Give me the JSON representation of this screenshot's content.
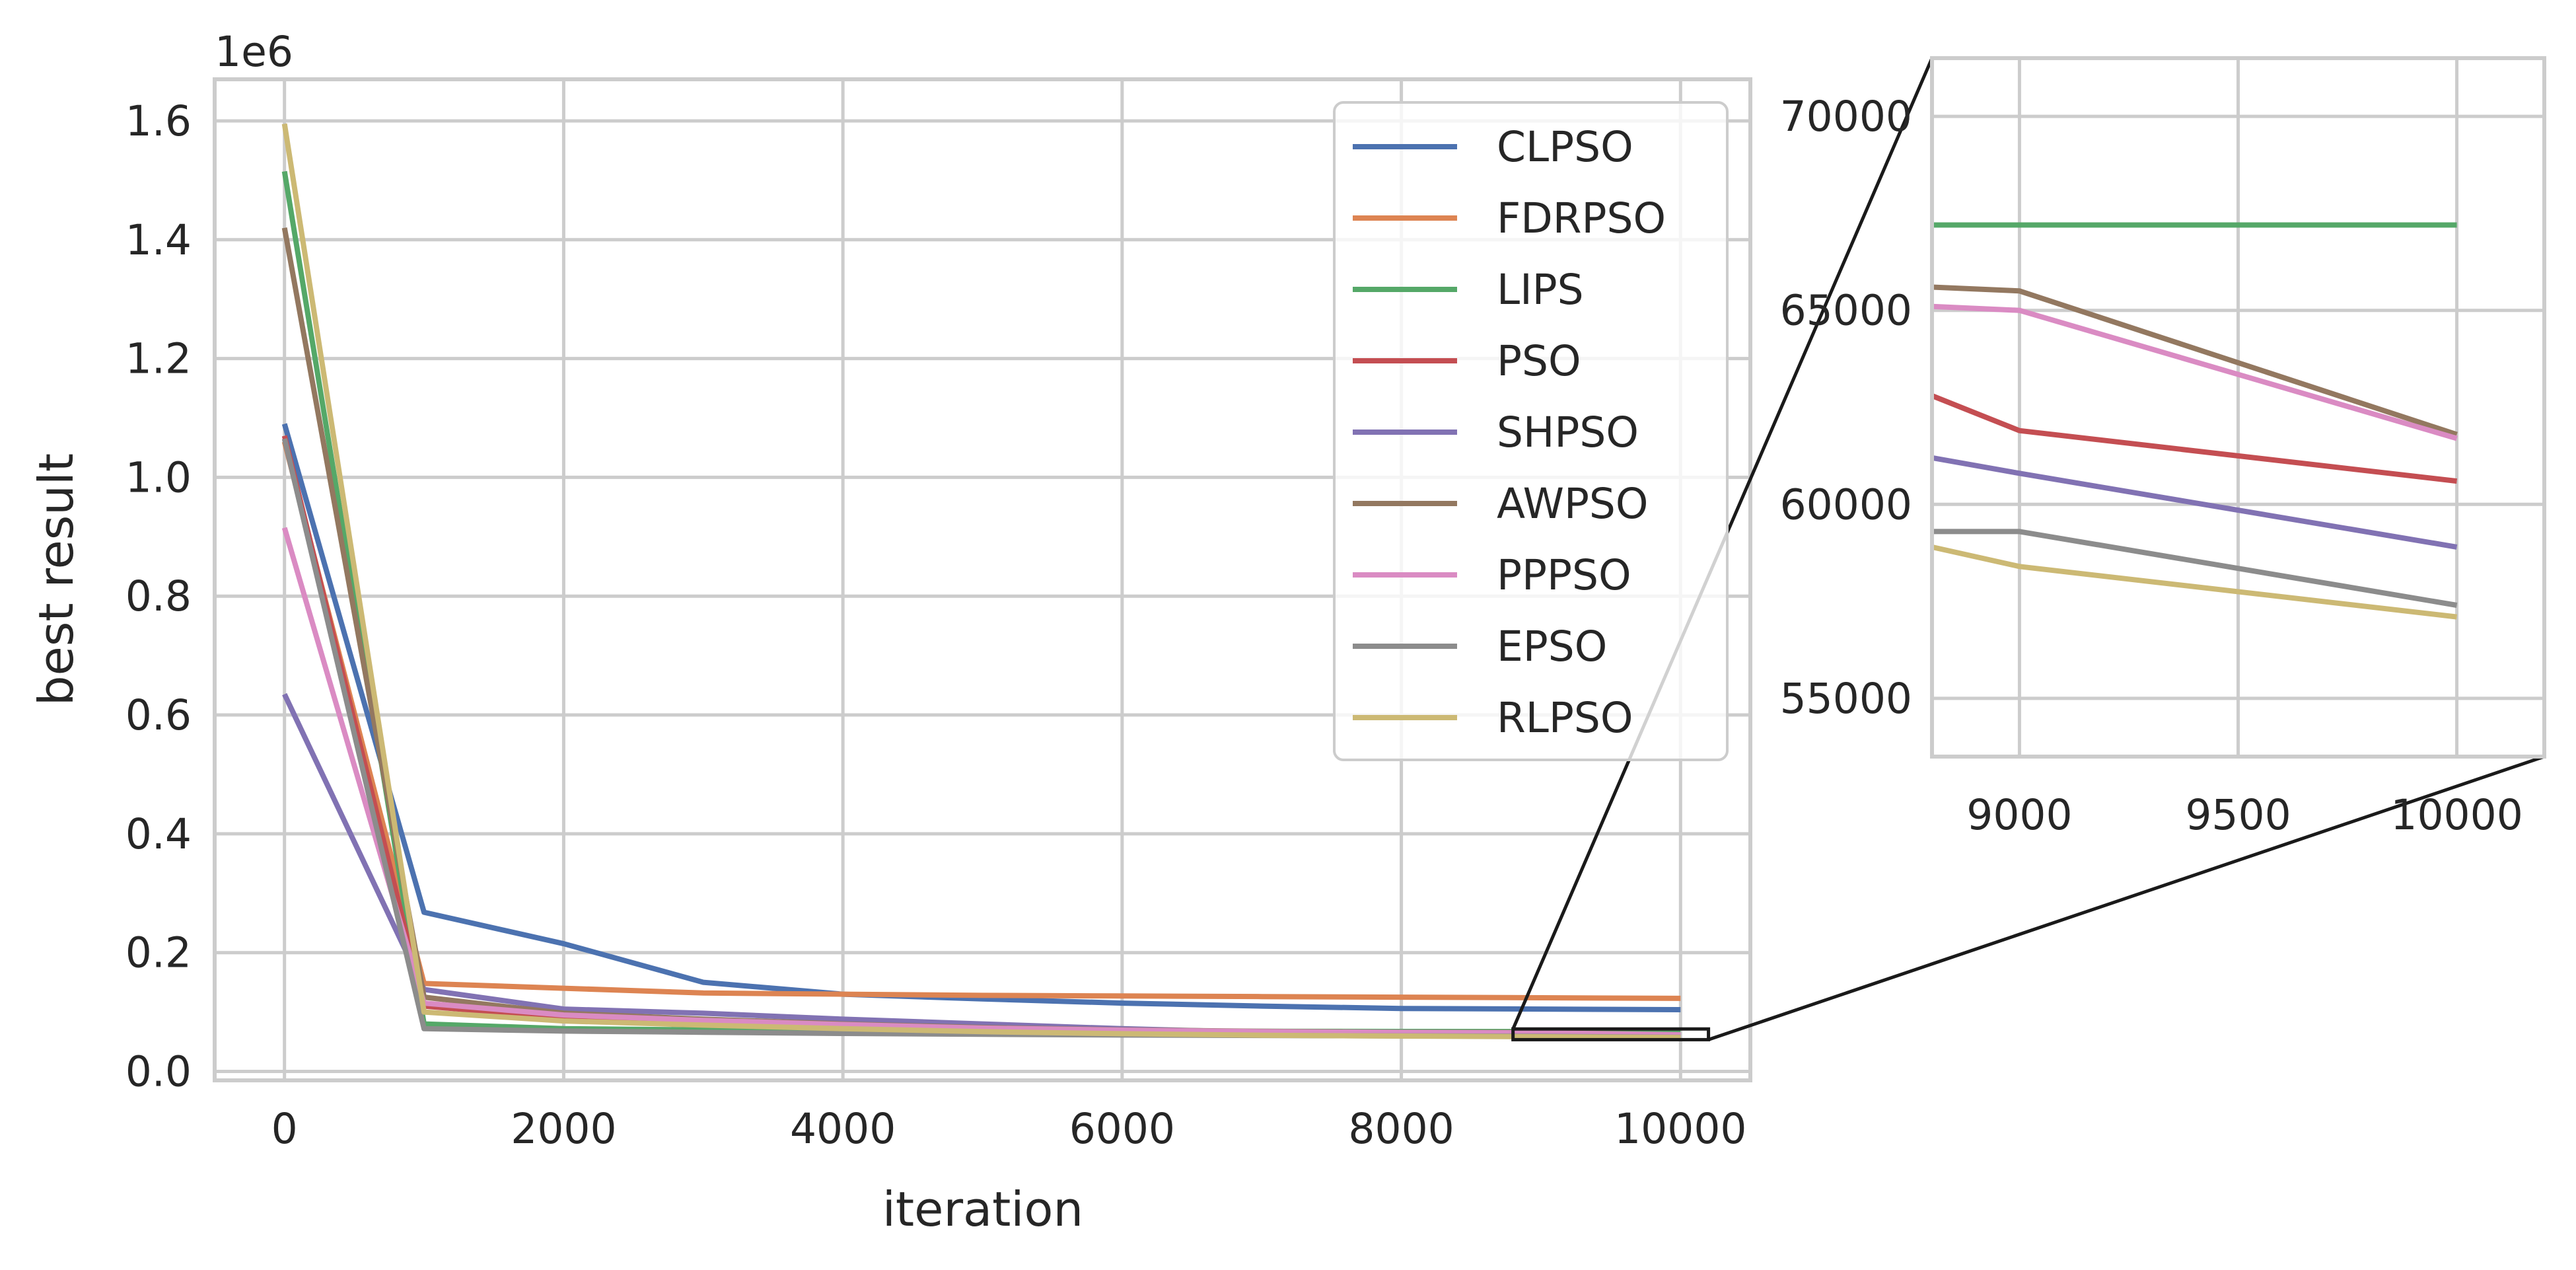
{
  "chart_data": [
    {
      "type": "line",
      "title": "",
      "xlabel": "iteration",
      "ylabel": "best result",
      "y_multiplier_label": "1e6",
      "xlim": [
        -500,
        10500
      ],
      "ylim": [
        -15000,
        1670000
      ],
      "xticks": [
        0,
        2000,
        4000,
        6000,
        8000,
        10000
      ],
      "xtick_labels": [
        "0",
        "2000",
        "4000",
        "6000",
        "8000",
        "10000"
      ],
      "yticks": [
        0,
        200000,
        400000,
        600000,
        800000,
        1000000,
        1200000,
        1400000,
        1600000
      ],
      "ytick_labels": [
        "0.0",
        "0.2",
        "0.4",
        "0.6",
        "0.8",
        "1.0",
        "1.2",
        "1.4",
        "1.6"
      ],
      "grid": true,
      "legend_position": "upper-right",
      "x": [
        0,
        1000,
        2000,
        3000,
        4000,
        5000,
        6000,
        7000,
        8000,
        9000,
        10000
      ],
      "series": [
        {
          "name": "CLPSO",
          "color": "#4c72b0",
          "values": [
            1090000,
            268000,
            215000,
            150000,
            130000,
            122000,
            115000,
            110000,
            106000,
            105000,
            104000
          ]
        },
        {
          "name": "FDRPSO",
          "color": "#dd8452",
          "values": [
            1060000,
            148000,
            140000,
            132000,
            130000,
            128000,
            127000,
            126000,
            125000,
            124000,
            123000
          ]
        },
        {
          "name": "LIPS",
          "color": "#55a868",
          "values": [
            1515000,
            80000,
            72000,
            70000,
            69000,
            68000,
            67800,
            67500,
            67300,
            67200,
            67200
          ]
        },
        {
          "name": "PSO",
          "color": "#c44e52",
          "values": [
            1070000,
            110000,
            90000,
            80000,
            72000,
            68000,
            65000,
            63500,
            62500,
            61900,
            60600
          ]
        },
        {
          "name": "SHPSO",
          "color": "#8172b3",
          "values": [
            635000,
            138000,
            105000,
            98000,
            88000,
            80000,
            72000,
            66000,
            62500,
            60800,
            58900
          ]
        },
        {
          "name": "AWPSO",
          "color": "#937860",
          "values": [
            1420000,
            125000,
            98000,
            88000,
            80000,
            74000,
            70000,
            67500,
            66000,
            65500,
            61800
          ]
        },
        {
          "name": "PPPSO",
          "color": "#da8bc3",
          "values": [
            915000,
            115000,
            95000,
            86000,
            79000,
            73000,
            69500,
            67000,
            65800,
            65000,
            61700
          ]
        },
        {
          "name": "EPSO",
          "color": "#8c8c8c",
          "values": [
            1065000,
            72000,
            68000,
            66000,
            64000,
            62500,
            61300,
            60500,
            59800,
            59300,
            57400
          ]
        },
        {
          "name": "RLPSO",
          "color": "#ccb974",
          "values": [
            1595000,
            100000,
            85000,
            78000,
            72000,
            67000,
            63500,
            61000,
            59500,
            58400,
            57100
          ]
        }
      ]
    },
    {
      "type": "line",
      "title": "",
      "xlabel": "",
      "ylabel": "",
      "xlim": [
        8800,
        10200
      ],
      "ylim": [
        53500,
        71500
      ],
      "xticks": [
        9000,
        9500,
        10000
      ],
      "xtick_labels": [
        "9000",
        "9500",
        "10000"
      ],
      "yticks": [
        55000,
        60000,
        65000,
        70000
      ],
      "ytick_labels": [
        "55000",
        "60000",
        "65000",
        "70000"
      ],
      "grid": true,
      "x": [
        8800,
        9000,
        10000
      ],
      "series": [
        {
          "name": "LIPS",
          "color": "#55a868",
          "values": [
            67200,
            67200,
            67200
          ]
        },
        {
          "name": "AWPSO",
          "color": "#937860",
          "values": [
            65600,
            65500,
            61800
          ]
        },
        {
          "name": "PPPSO",
          "color": "#da8bc3",
          "values": [
            65100,
            65000,
            61700
          ]
        },
        {
          "name": "PSO",
          "color": "#c44e52",
          "values": [
            62800,
            61900,
            60600
          ]
        },
        {
          "name": "SHPSO",
          "color": "#8172b3",
          "values": [
            61200,
            60800,
            58900
          ]
        },
        {
          "name": "EPSO",
          "color": "#8c8c8c",
          "values": [
            59300,
            59300,
            57400
          ]
        },
        {
          "name": "RLPSO",
          "color": "#ccb974",
          "values": [
            58900,
            58400,
            57100
          ]
        }
      ]
    }
  ],
  "zoom_region": {
    "x": [
      8800,
      10200
    ],
    "y": [
      53500,
      71500
    ]
  }
}
